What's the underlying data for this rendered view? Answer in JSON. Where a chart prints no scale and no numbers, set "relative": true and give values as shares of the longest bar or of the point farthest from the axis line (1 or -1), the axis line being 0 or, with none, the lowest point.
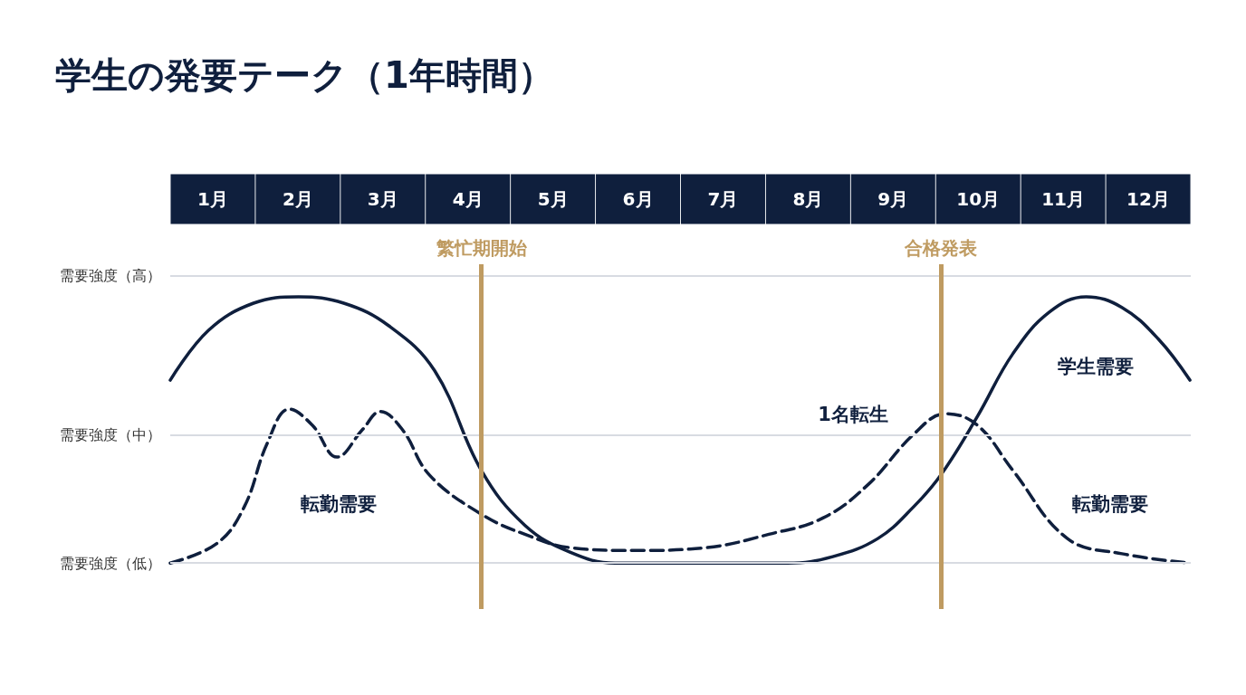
{
  "chart_data": {
    "type": "line",
    "title": "学生の発要テーク（1年時間）",
    "relative": true,
    "xlim": [
      0.5,
      12.5
    ],
    "xticks": [
      {
        "value": 1,
        "label": "1月"
      },
      {
        "value": 2,
        "label": "2月"
      },
      {
        "value": 3,
        "label": "3月"
      },
      {
        "value": 4,
        "label": "4月"
      },
      {
        "value": 5,
        "label": "5月"
      },
      {
        "value": 6,
        "label": "6月"
      },
      {
        "value": 7,
        "label": "7月"
      },
      {
        "value": 8,
        "label": "8月"
      },
      {
        "value": 9,
        "label": "9月"
      },
      {
        "value": 10,
        "label": "10月"
      },
      {
        "value": 11,
        "label": "11月"
      },
      {
        "value": 12,
        "label": "12月"
      }
    ],
    "marker": "none",
    "series": [
      {
        "color": "#0f1f3d",
        "line_style": "solid",
        "x": [
          0.5,
          0.95,
          1.48,
          2.01,
          2.54,
          3.07,
          3.61,
          4.16,
          4.67,
          5.2,
          5.73,
          6.8,
          7.76,
          8.29,
          8.82,
          9.24,
          9.56,
          9.99,
          10.41,
          10.84,
          11.27,
          11.69,
          12.12,
          12.49
        ],
        "values": [
          0.687,
          0.874,
          0.976,
          1,
          0.976,
          0.891,
          0.722,
          0.347,
          0.142,
          0.041,
          0,
          0,
          0,
          0.024,
          0.092,
          0.211,
          0.33,
          0.55,
          0.787,
          0.943,
          1,
          0.96,
          0.841,
          0.687
        ]
      },
      {
        "color": "#0f1f3d",
        "line_style": "dashed",
        "x": [
          0.5,
          1.05,
          1.37,
          1.64,
          1.9,
          2.17,
          2.46,
          2.76,
          2.97,
          3.23,
          3.55,
          4.16,
          4.67,
          5.2,
          5.95,
          6.8,
          7.54,
          8.18,
          8.71,
          9.24,
          9.62,
          9.99,
          10.41,
          11.05,
          11.69,
          12.49
        ],
        "values": [
          0,
          0.074,
          0.211,
          0.449,
          0.578,
          0.518,
          0.398,
          0.501,
          0.569,
          0.501,
          0.33,
          0.183,
          0.108,
          0.058,
          0.047,
          0.058,
          0.108,
          0.17,
          0.296,
          0.483,
          0.561,
          0.518,
          0.347,
          0.092,
          0.035,
          0
        ]
      }
    ],
    "ref_lines": [
      {
        "axis": "y",
        "value": 1.079,
        "label": "需要強度（高）",
        "color": "#d8dbe2"
      },
      {
        "axis": "y",
        "value": 0.48,
        "label": "需要強度（中）",
        "color": "#d8dbe2"
      },
      {
        "axis": "y",
        "value": 0,
        "label": "需要強度（低）",
        "color": "#d8dbe2"
      },
      {
        "axis": "x",
        "value": 4.16,
        "label": "繁忙期開始",
        "color": "#bf9b61"
      },
      {
        "axis": "x",
        "value": 9.56,
        "label": "合格発表",
        "color": "#bf9b61"
      }
    ],
    "annotations": [
      "転勤需要",
      "学生需要",
      "1名転生",
      "転勤需要"
    ]
  }
}
